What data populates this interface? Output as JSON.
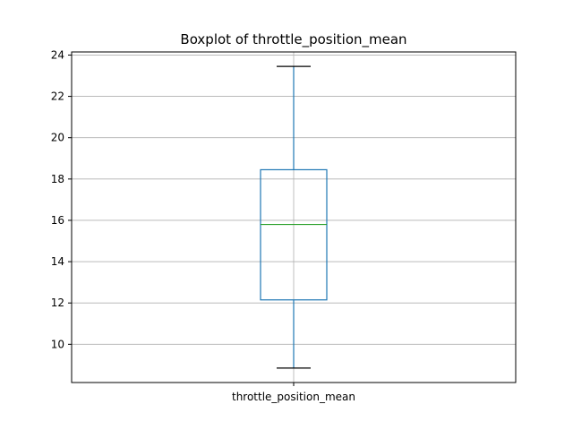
{
  "chart_data": {
    "type": "boxplot",
    "title": "Boxplot of throttle_position_mean",
    "xlabel": "",
    "ylabel": "",
    "categories": [
      "throttle_position_mean"
    ],
    "boxes": [
      {
        "category": "throttle_position_mean",
        "whisker_low": 8.85,
        "q1": 12.15,
        "median": 15.8,
        "q3": 18.45,
        "whisker_high": 23.45
      }
    ],
    "ylim": [
      8.15,
      24.15
    ],
    "yticks": [
      10,
      12,
      14,
      16,
      18,
      20,
      22,
      24
    ],
    "grid": true,
    "colors": {
      "box": "#1f77b4",
      "median": "#2ca02c",
      "caps": "#000000",
      "grid": "#b0b0b0",
      "frame": "#000000"
    }
  }
}
